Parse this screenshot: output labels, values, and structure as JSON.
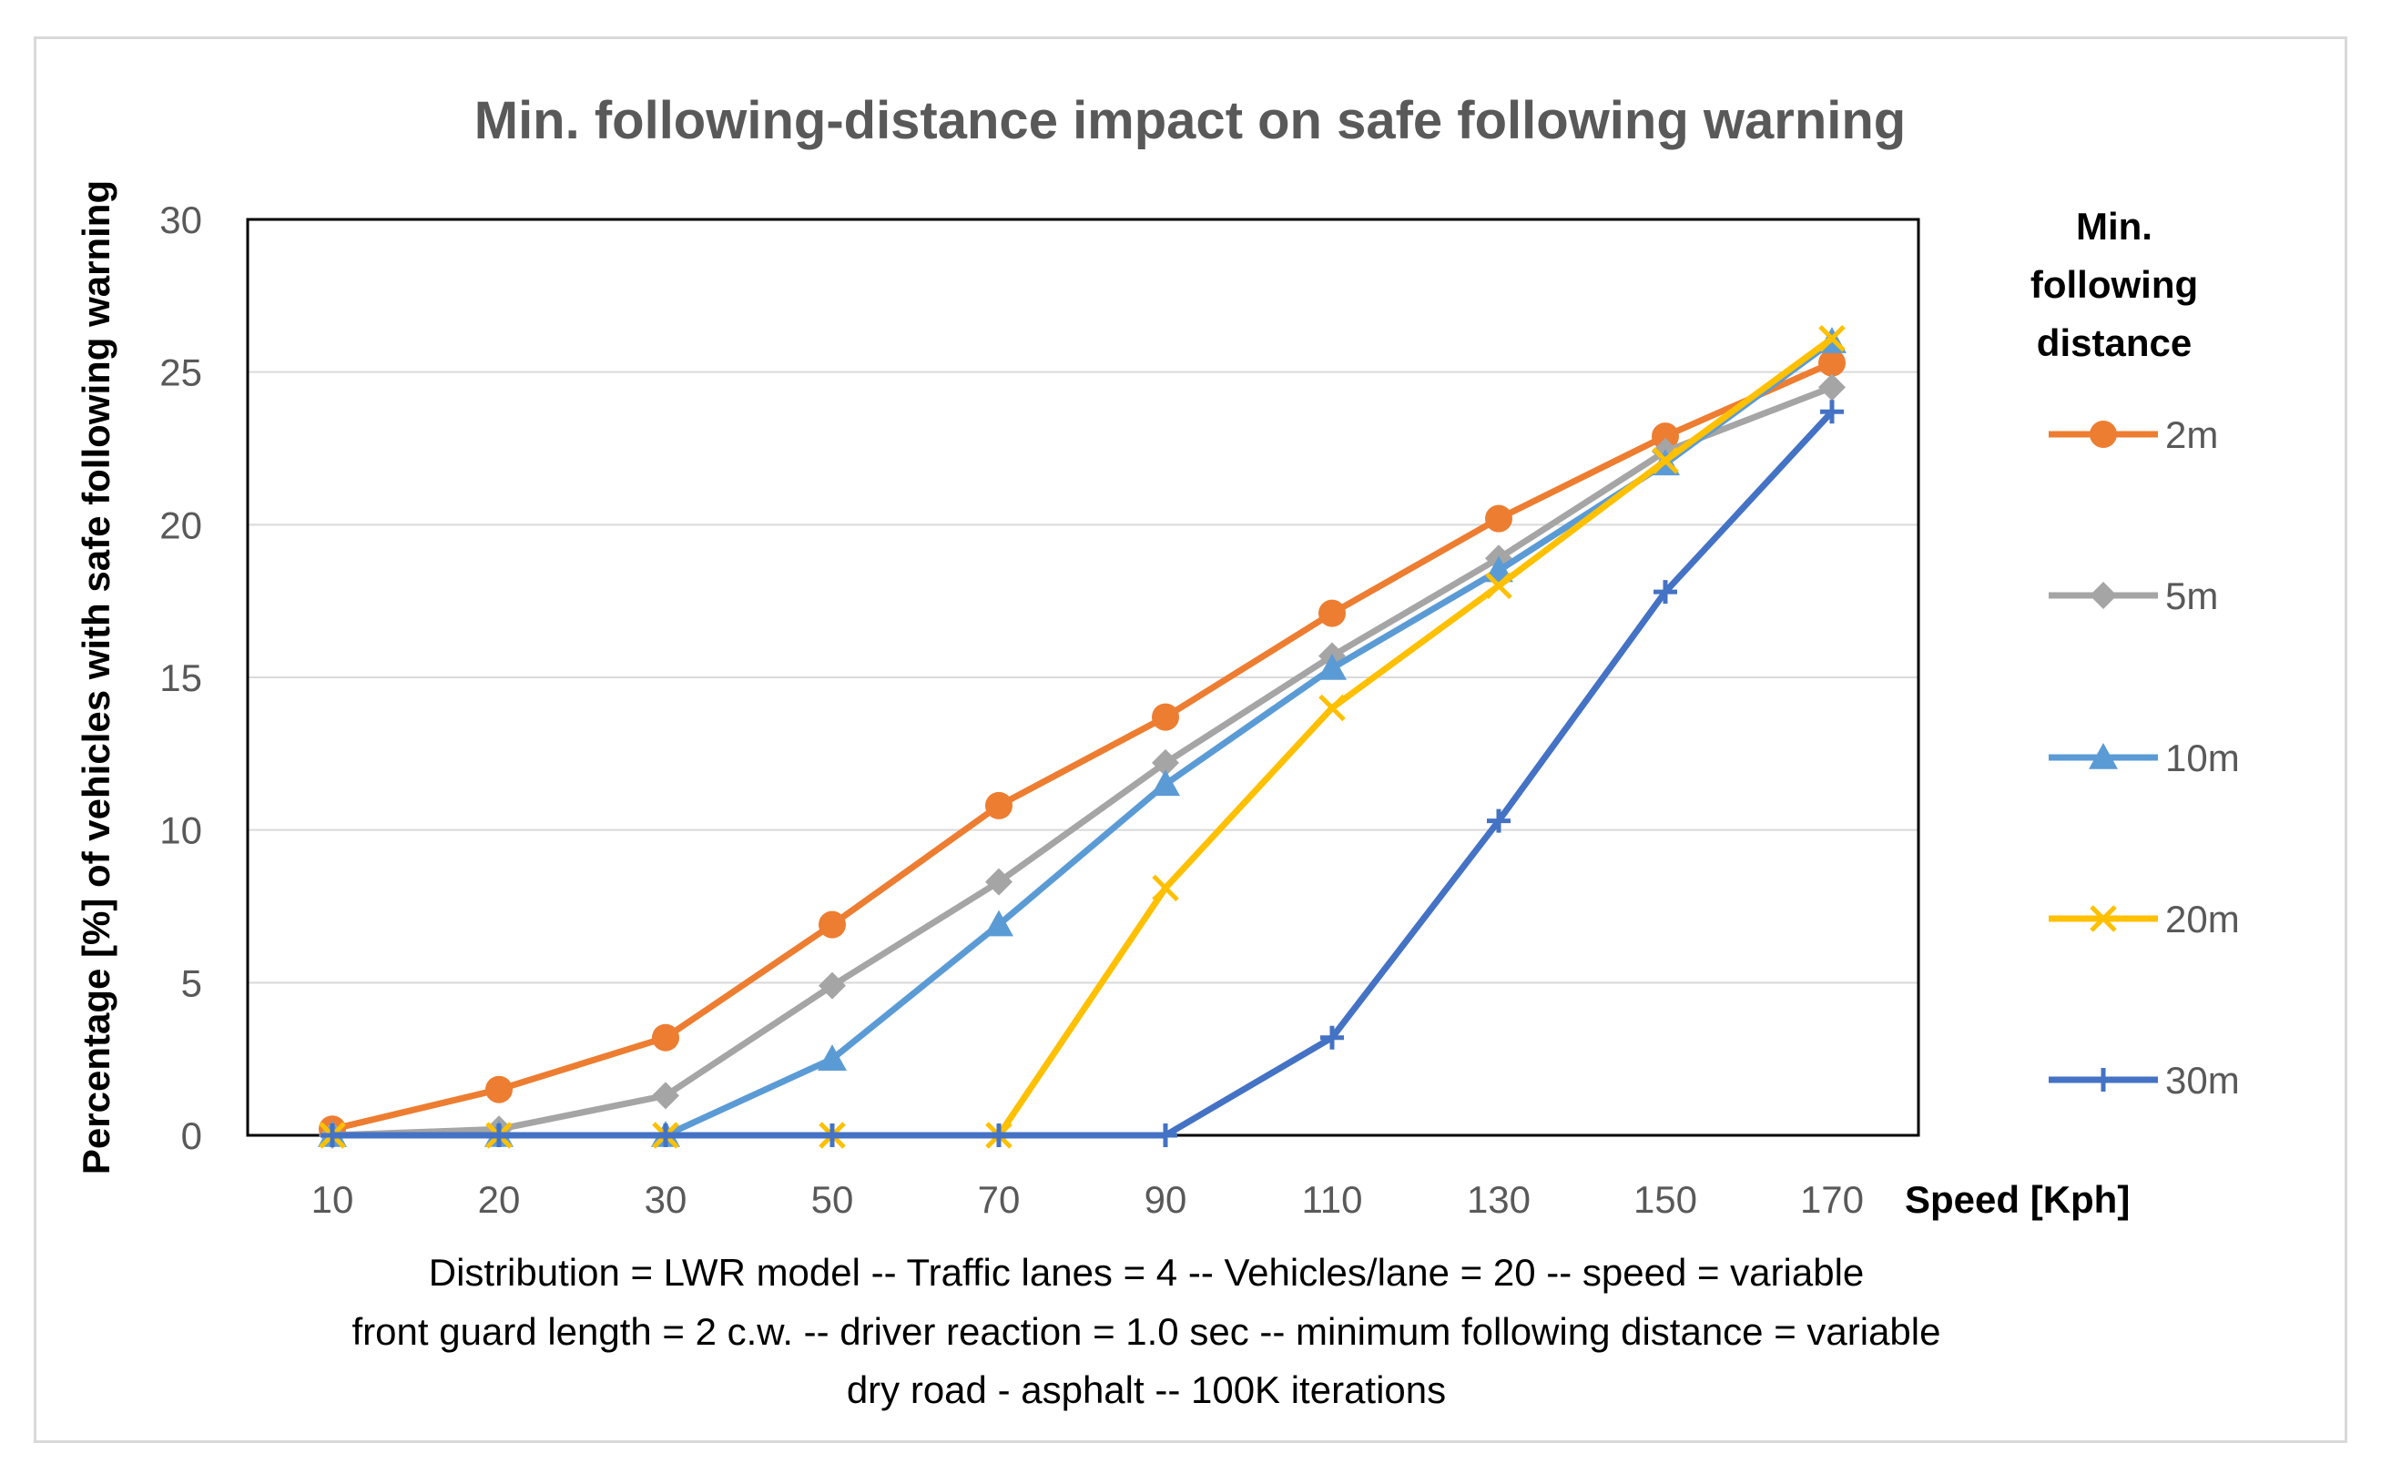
{
  "chart_data": {
    "type": "line",
    "title": "Min. following-distance impact on safe following warning",
    "xlabel": "Speed [Kph]",
    "ylabel": "Percentage [%] of vehicles with safe following warning",
    "categories": [
      "10",
      "20",
      "30",
      "50",
      "70",
      "90",
      "110",
      "130",
      "150",
      "170"
    ],
    "ylim": [
      0,
      30
    ],
    "yticks": [
      0,
      5,
      10,
      15,
      20,
      25,
      30
    ],
    "grid": true,
    "legend_title": [
      "Min.",
      "following",
      "distance"
    ],
    "legend_position": "right",
    "series": [
      {
        "name": "2m",
        "color": "#ED7D31",
        "marker": "circle",
        "values": [
          0.2,
          1.5,
          3.2,
          6.9,
          10.8,
          13.7,
          17.1,
          20.2,
          22.9,
          25.3
        ]
      },
      {
        "name": "5m",
        "color": "#A5A5A5",
        "marker": "diamond",
        "values": [
          0.0,
          0.2,
          1.3,
          4.9,
          8.3,
          12.2,
          15.7,
          18.9,
          22.4,
          24.5
        ]
      },
      {
        "name": "10m",
        "color": "#5B9BD5",
        "marker": "triangle",
        "values": [
          0.0,
          0.0,
          0.0,
          2.5,
          6.9,
          11.5,
          15.3,
          18.5,
          22.0,
          26.0
        ]
      },
      {
        "name": "20m",
        "color": "#FFC000",
        "marker": "x",
        "values": [
          0.0,
          0.0,
          0.0,
          0.0,
          0.0,
          8.1,
          14.0,
          18.0,
          22.1,
          26.1
        ]
      },
      {
        "name": "30m",
        "color": "#4472C4",
        "marker": "plus",
        "values": [
          0.0,
          0.0,
          0.0,
          0.0,
          0.0,
          0.0,
          3.2,
          10.3,
          17.8,
          23.7
        ]
      }
    ],
    "caption": [
      "Distribution = LWR model -- Traffic lanes = 4 -- Vehicles/lane = 20 -- speed = variable",
      "front guard length = 2 c.w. -- driver reaction = 1.0 sec -- minimum following distance = variable",
      "dry road - asphalt -- 100K iterations"
    ]
  }
}
